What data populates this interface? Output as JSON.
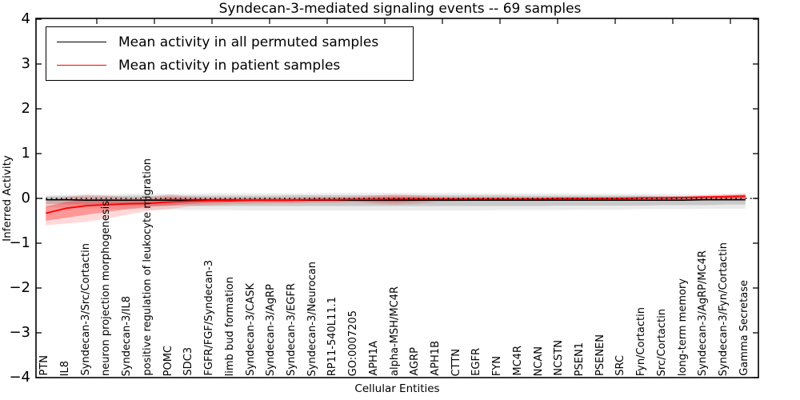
{
  "chart_data": {
    "type": "line",
    "title": "Syndecan-3-mediated signaling events -- 69 samples",
    "xlabel": "Cellular Entities",
    "ylabel": "Inferred Activity",
    "ylim": [
      -4,
      4
    ],
    "ytick_labels": [
      "4",
      "3",
      "2",
      "1",
      "0",
      "−1",
      "−2",
      "−3",
      "−4"
    ],
    "grid": false,
    "legend_position": "upper left",
    "zero_line_style": "dotted",
    "categories": [
      "PTN",
      "IL8",
      "Syndecan-3/Src/Cortactin",
      "neuron projection morphogenesis",
      "Syndecan-3/IL8",
      "positive regulation of leukocyte migration",
      "POMC",
      "SDC3",
      "FGFR/FGF/Syndecan-3",
      "limb bud formation",
      "Syndecan-3/CASK",
      "Syndecan-3/AgRP",
      "Syndecan-3/EGFR",
      "Syndecan-3/Neurocan",
      "RP11-540L11.1",
      "GO:0007205",
      "APH1A",
      "alpha-MSH/MC4R",
      "AGRP",
      "APH1B",
      "CTTN",
      "EGFR",
      "FYN",
      "MC4R",
      "NCAN",
      "NCSTN",
      "PSEN1",
      "PSENEN",
      "SRC",
      "Fyn/Cortactin",
      "Src/Cortactin",
      "long-term memory",
      "Syndecan-3/AgRP/MC4R",
      "Syndecan-3/Fyn/Cortactin",
      "Gamma Secretase"
    ],
    "series": [
      {
        "name": "Mean activity in all permuted samples",
        "color": "#000000",
        "values": [
          -0.03,
          -0.03,
          -0.04,
          -0.04,
          -0.04,
          -0.04,
          -0.04,
          -0.04,
          -0.04,
          -0.04,
          -0.04,
          -0.04,
          -0.04,
          -0.04,
          -0.04,
          -0.04,
          -0.04,
          -0.04,
          -0.04,
          -0.04,
          -0.04,
          -0.04,
          -0.04,
          -0.04,
          -0.04,
          -0.04,
          -0.04,
          -0.04,
          -0.04,
          -0.04,
          -0.04,
          -0.04,
          -0.03,
          -0.03,
          -0.03
        ],
        "band_inner": {
          "upper": [
            0.04,
            0.05,
            0.05,
            0.05,
            0.06,
            0.06,
            0.06,
            0.06,
            0.06,
            0.06,
            0.06,
            0.06,
            0.07,
            0.07,
            0.07,
            0.07,
            0.07,
            0.07,
            0.07,
            0.07,
            0.07,
            0.07,
            0.07,
            0.06,
            0.06,
            0.06,
            0.06,
            0.06,
            0.06,
            0.06,
            0.05,
            0.05,
            0.05,
            0.05,
            0.05
          ],
          "lower": [
            -0.12,
            -0.13,
            -0.14,
            -0.15,
            -0.15,
            -0.16,
            -0.16,
            -0.16,
            -0.17,
            -0.17,
            -0.17,
            -0.17,
            -0.17,
            -0.17,
            -0.17,
            -0.17,
            -0.17,
            -0.17,
            -0.17,
            -0.17,
            -0.17,
            -0.17,
            -0.17,
            -0.17,
            -0.17,
            -0.16,
            -0.16,
            -0.16,
            -0.16,
            -0.16,
            -0.15,
            -0.15,
            -0.15,
            -0.14,
            -0.14
          ]
        },
        "band_outer": {
          "upper": [
            0.07,
            0.08,
            0.09,
            0.09,
            0.1,
            0.1,
            0.1,
            0.1,
            0.11,
            0.11,
            0.11,
            0.11,
            0.11,
            0.11,
            0.12,
            0.12,
            0.12,
            0.12,
            0.12,
            0.12,
            0.12,
            0.11,
            0.11,
            0.11,
            0.11,
            0.11,
            0.1,
            0.1,
            0.1,
            0.1,
            0.1,
            0.09,
            0.09,
            0.09,
            0.09
          ],
          "lower": [
            -0.2,
            -0.21,
            -0.22,
            -0.23,
            -0.24,
            -0.25,
            -0.25,
            -0.26,
            -0.26,
            -0.26,
            -0.27,
            -0.27,
            -0.27,
            -0.27,
            -0.27,
            -0.27,
            -0.27,
            -0.27,
            -0.27,
            -0.27,
            -0.27,
            -0.27,
            -0.26,
            -0.26,
            -0.26,
            -0.26,
            -0.25,
            -0.25,
            -0.25,
            -0.24,
            -0.24,
            -0.24,
            -0.23,
            -0.23,
            -0.23
          ]
        }
      },
      {
        "name": "Mean activity in patient samples",
        "color": "#ff0000",
        "values": [
          -0.33,
          -0.22,
          -0.16,
          -0.14,
          -0.12,
          -0.11,
          -0.08,
          -0.06,
          -0.05,
          -0.05,
          -0.04,
          -0.04,
          -0.04,
          -0.03,
          -0.03,
          -0.02,
          -0.02,
          -0.01,
          -0.01,
          -0.01,
          -0.01,
          -0.01,
          -0.01,
          -0.01,
          -0.01,
          0.0,
          0.0,
          0.0,
          0.0,
          0.01,
          0.01,
          0.02,
          0.03,
          0.04,
          0.05
        ],
        "band_inner": {
          "upper": [
            -0.18,
            -0.08,
            -0.02,
            -0.02,
            -0.03,
            -0.02,
            0.02,
            0.0,
            0.0,
            0.0,
            0.0,
            0.0,
            0.0,
            0.01,
            0.01,
            0.01,
            0.03,
            0.04,
            0.03,
            0.01,
            0.01,
            0.01,
            0.01,
            0.01,
            0.01,
            0.01,
            0.01,
            0.02,
            0.02,
            0.02,
            0.03,
            0.03,
            0.04,
            0.06,
            0.08
          ],
          "lower": [
            -0.5,
            -0.43,
            -0.36,
            -0.3,
            -0.24,
            -0.19,
            -0.16,
            -0.12,
            -0.1,
            -0.09,
            -0.08,
            -0.08,
            -0.08,
            -0.07,
            -0.07,
            -0.06,
            -0.08,
            -0.09,
            -0.07,
            -0.05,
            -0.04,
            -0.04,
            -0.04,
            -0.04,
            -0.04,
            -0.03,
            -0.03,
            -0.03,
            -0.03,
            -0.02,
            -0.02,
            -0.02,
            -0.01,
            -0.01,
            0.0
          ]
        },
        "band_outer": {
          "upper": [
            -0.07,
            0.03,
            0.08,
            0.06,
            0.02,
            0.02,
            0.09,
            0.04,
            0.02,
            0.02,
            0.02,
            0.02,
            0.02,
            0.03,
            0.03,
            0.04,
            0.07,
            0.09,
            0.07,
            0.04,
            0.03,
            0.03,
            0.03,
            0.03,
            0.03,
            0.03,
            0.03,
            0.03,
            0.04,
            0.04,
            0.05,
            0.05,
            0.07,
            0.09,
            0.12
          ],
          "lower": [
            -0.6,
            -0.56,
            -0.52,
            -0.45,
            -0.36,
            -0.28,
            -0.24,
            -0.18,
            -0.15,
            -0.13,
            -0.12,
            -0.11,
            -0.11,
            -0.1,
            -0.1,
            -0.09,
            -0.12,
            -0.14,
            -0.12,
            -0.08,
            -0.07,
            -0.06,
            -0.06,
            -0.06,
            -0.06,
            -0.05,
            -0.05,
            -0.05,
            -0.05,
            -0.05,
            -0.04,
            -0.04,
            -0.03,
            -0.03,
            -0.02
          ]
        }
      }
    ]
  }
}
